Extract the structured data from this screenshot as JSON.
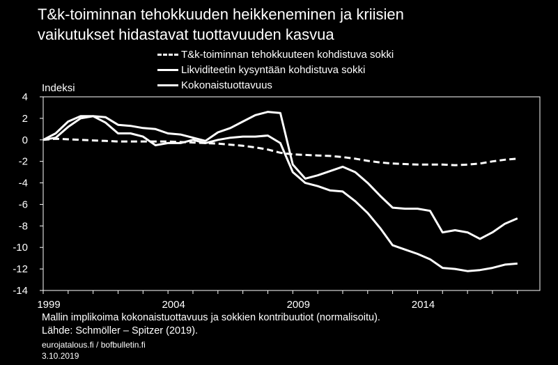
{
  "chart_data": {
    "type": "line",
    "title": [
      "T&k-toiminnan tehokkuuden heikkeneminen ja kriisien",
      "vaikutukset hidastavat tuottavuuden kasvua"
    ],
    "ylabel": "Indeksi",
    "xlabel": "",
    "ylim": [
      -14,
      4
    ],
    "yticks": [
      4,
      2,
      0,
      -2,
      -4,
      -6,
      -8,
      -10,
      -12,
      -14
    ],
    "xlim": [
      1999,
      2018.9
    ],
    "xticks": [
      1999,
      2004,
      2009,
      2014
    ],
    "grid": false,
    "legend_position": "top-right",
    "series": [
      {
        "name": "T&k-toiminnan tehokkuuteen kohdistuva sokki",
        "style": "dashed",
        "x": [
          1999,
          1999.5,
          2000,
          2000.5,
          2001,
          2001.5,
          2002,
          2002.5,
          2003,
          2003.5,
          2004,
          2004.5,
          2005,
          2005.5,
          2006,
          2006.5,
          2007,
          2007.5,
          2008,
          2008.5,
          2009,
          2009.5,
          2010,
          2010.5,
          2011,
          2011.5,
          2012,
          2012.5,
          2013,
          2013.5,
          2014,
          2014.5,
          2015,
          2015.5,
          2016,
          2016.5,
          2017,
          2017.5,
          2018
        ],
        "values": [
          0,
          0.1,
          0.05,
          0,
          -0.05,
          -0.1,
          -0.15,
          -0.15,
          -0.15,
          -0.15,
          -0.15,
          -0.2,
          -0.25,
          -0.3,
          -0.35,
          -0.45,
          -0.55,
          -0.7,
          -0.9,
          -1.2,
          -1.35,
          -1.4,
          -1.45,
          -1.5,
          -1.6,
          -1.75,
          -1.95,
          -2.1,
          -2.2,
          -2.25,
          -2.3,
          -2.3,
          -2.3,
          -2.35,
          -2.3,
          -2.2,
          -2.0,
          -1.85,
          -1.75
        ]
      },
      {
        "name": "Likviditeetin kysyntään kohdistuva sokki",
        "style": "solid",
        "x": [
          1999,
          1999.5,
          2000,
          2000.5,
          2001,
          2001.5,
          2002,
          2002.5,
          2003,
          2003.5,
          2004,
          2004.5,
          2005,
          2005.5,
          2006,
          2006.5,
          2007,
          2007.5,
          2008,
          2008.5,
          2009,
          2009.5,
          2010,
          2010.5,
          2011,
          2011.5,
          2012,
          2012.5,
          2013,
          2013.5,
          2014,
          2014.5,
          2015,
          2015.5,
          2016,
          2016.5,
          2017,
          2017.5,
          2018
        ],
        "values": [
          0,
          0.2,
          1.2,
          2.0,
          2.2,
          2.1,
          1.4,
          1.3,
          1.1,
          1.0,
          0.6,
          0.5,
          0.2,
          -0.1,
          0.7,
          1.1,
          1.7,
          2.3,
          2.6,
          2.5,
          -2.3,
          -3.6,
          -3.3,
          -2.9,
          -2.5,
          -3.0,
          -4.0,
          -5.2,
          -6.3,
          -6.4,
          -6.4,
          -6.6,
          -8.6,
          -8.4,
          -8.6,
          -9.2,
          -8.6,
          -7.8,
          -7.3
        ]
      },
      {
        "name": "Kokonaistuottavuus",
        "style": "solid",
        "x": [
          1999,
          1999.5,
          2000,
          2000.5,
          2001,
          2001.5,
          2002,
          2002.5,
          2003,
          2003.5,
          2004,
          2004.5,
          2005,
          2005.5,
          2006,
          2006.5,
          2007,
          2007.5,
          2008,
          2008.5,
          2009,
          2009.5,
          2010,
          2010.5,
          2011,
          2011.5,
          2012,
          2012.5,
          2013,
          2013.5,
          2014,
          2014.5,
          2015,
          2015.5,
          2016,
          2016.5,
          2017,
          2017.5,
          2018
        ],
        "values": [
          0,
          0.6,
          1.7,
          2.2,
          2.2,
          1.6,
          0.6,
          0.6,
          0.3,
          -0.5,
          -0.3,
          -0.3,
          0,
          -0.3,
          0,
          0.2,
          0.3,
          0.3,
          0.4,
          -0.3,
          -3.0,
          -4.0,
          -4.3,
          -4.7,
          -4.8,
          -5.7,
          -6.8,
          -8.2,
          -9.8,
          -10.2,
          -10.6,
          -11.1,
          -11.9,
          -12.0,
          -12.2,
          -12.1,
          -11.9,
          -11.6,
          -11.5
        ]
      }
    ]
  },
  "footer": {
    "line1": "Mallin implikoima kokonaistuottavuus  ja sokkien kontribuutiot (normalisoitu).",
    "line2": "Lähde: Schmöller – Spitzer (2019).",
    "line3": "eurojatalous.fi  / bofbulletin.fi",
    "line4": "3.10.2019"
  }
}
